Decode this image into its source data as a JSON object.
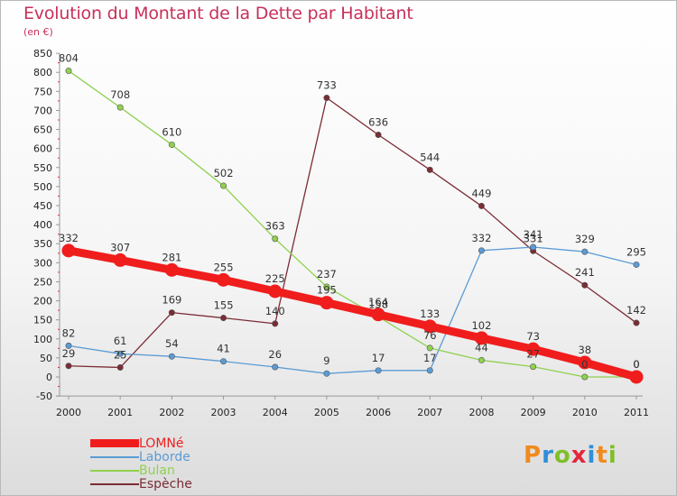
{
  "header": {
    "title": "Evolution du Montant de la Dette par Habitant",
    "subtitle": "(en €)"
  },
  "logo": {
    "text": "Proxiti",
    "colors": [
      "#f08a1c",
      "#2f8fd8",
      "#7fbf2a",
      "#e0283c",
      "#2f8fd8",
      "#f08a1c",
      "#7fbf2a"
    ]
  },
  "chart_data": {
    "type": "line",
    "title": "Evolution du Montant de la Dette par Habitant",
    "subtitle": "(en €)",
    "x": [
      "2000",
      "2001",
      "2002",
      "2003",
      "2004",
      "2005",
      "2006",
      "2007",
      "2008",
      "2009",
      "2010",
      "2011"
    ],
    "ylim": [
      -50,
      850
    ],
    "yticks": [
      -50,
      0,
      50,
      100,
      150,
      200,
      250,
      300,
      350,
      400,
      450,
      500,
      550,
      600,
      650,
      700,
      750,
      800,
      850
    ],
    "grid": false,
    "legend_position": "bottom-left",
    "series": [
      {
        "name": "LOMNé",
        "color": "#f01d1d",
        "values": [
          332,
          307,
          281,
          255,
          225,
          195,
          164,
          133,
          102,
          73,
          38,
          0
        ],
        "labels": [
          "332",
          "307",
          "281",
          "255",
          "225",
          "195",
          "164",
          "133",
          "102",
          "73",
          "38",
          "0"
        ]
      },
      {
        "name": "Laborde",
        "color": "#5b9bd5",
        "values": [
          82,
          61,
          54,
          41,
          26,
          9,
          17,
          17,
          332,
          341,
          329,
          295
        ],
        "labels": [
          "82",
          "61",
          "54",
          "41",
          "26",
          "9",
          "17",
          "17",
          "332",
          "341",
          "329",
          "295"
        ]
      },
      {
        "name": "Bulan",
        "color": "#8fd14f",
        "values": [
          804,
          708,
          610,
          502,
          363,
          237,
          158,
          76,
          44,
          27,
          0,
          0
        ],
        "labels": [
          "804",
          "708",
          "610",
          "502",
          "363",
          "237",
          "158",
          "76",
          "44",
          "27",
          "0",
          "0"
        ]
      },
      {
        "name": "Espèche",
        "color": "#7b2c35",
        "values": [
          29,
          25,
          169,
          155,
          140,
          733,
          636,
          544,
          449,
          331,
          241,
          142
        ],
        "labels": [
          "29",
          "25",
          "169",
          "155",
          "140",
          "733",
          "636",
          "544",
          "449",
          "331",
          "241",
          "142"
        ]
      }
    ]
  }
}
